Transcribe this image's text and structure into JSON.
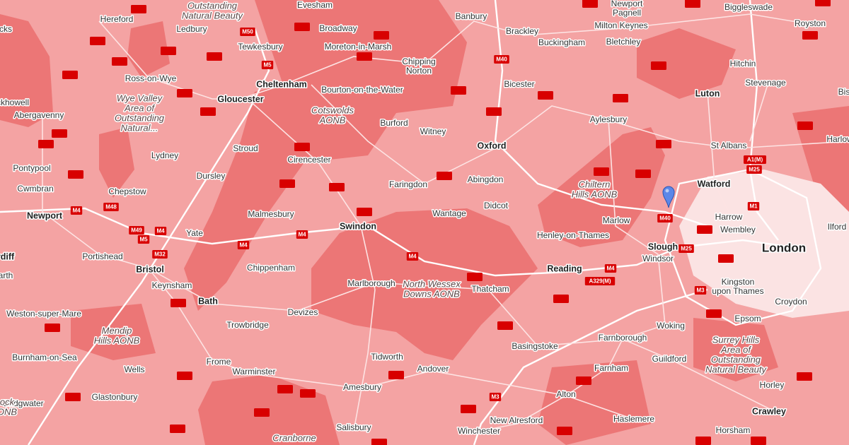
{
  "places": [
    {
      "lines": [
        "Evesham"
      ],
      "kind": "town"
    },
    {
      "lines": [
        "Outstanding",
        "Natural Beauty"
      ],
      "kind": "aonb"
    },
    {
      "lines": [
        "cks"
      ],
      "kind": "town"
    },
    {
      "lines": [
        "Hereford"
      ],
      "kind": "town"
    },
    {
      "lines": [
        "Ledbury"
      ],
      "kind": "town"
    },
    {
      "lines": [
        "Tewkesbury"
      ],
      "kind": "town"
    },
    {
      "lines": [
        "Broadway"
      ],
      "kind": "town"
    },
    {
      "lines": [
        "Moreton-in-Marsh"
      ],
      "kind": "town"
    },
    {
      "lines": [
        "Chipping",
        "Norton"
      ],
      "kind": "town"
    },
    {
      "lines": [
        "Banbury"
      ],
      "kind": "town"
    },
    {
      "lines": [
        "Brackley"
      ],
      "kind": "town"
    },
    {
      "lines": [
        "Buckingham"
      ],
      "kind": "town"
    },
    {
      "lines": [
        "Newport",
        "Pagnell"
      ],
      "kind": "town"
    },
    {
      "lines": [
        "Milton Keynes"
      ],
      "kind": "town"
    },
    {
      "lines": [
        "Bletchley"
      ],
      "kind": "town"
    },
    {
      "lines": [
        "Biggleswade"
      ],
      "kind": "town"
    },
    {
      "lines": [
        "Royston"
      ],
      "kind": "town"
    },
    {
      "lines": [
        "Ross-on-Wye"
      ],
      "kind": "town"
    },
    {
      "lines": [
        "Cheltenham"
      ],
      "kind": "city"
    },
    {
      "lines": [
        "Gloucester"
      ],
      "kind": "city"
    },
    {
      "lines": [
        "Bourton-on-the-Water"
      ],
      "kind": "town"
    },
    {
      "lines": [
        "Bicester"
      ],
      "kind": "town"
    },
    {
      "lines": [
        "Luton"
      ],
      "kind": "city"
    },
    {
      "lines": [
        "Hitchin"
      ],
      "kind": "town"
    },
    {
      "lines": [
        "Stevenage"
      ],
      "kind": "town"
    },
    {
      "lines": [
        "Bis"
      ],
      "kind": "town"
    },
    {
      "lines": [
        "ckhowell"
      ],
      "kind": "town"
    },
    {
      "lines": [
        "Abergavenny"
      ],
      "kind": "town"
    },
    {
      "lines": [
        "Wye Valley",
        "Area of",
        "Outstanding",
        "Natural..."
      ],
      "kind": "aonb"
    },
    {
      "lines": [
        "Cotswolds",
        "AONB"
      ],
      "kind": "aonb"
    },
    {
      "lines": [
        "Burford"
      ],
      "kind": "town"
    },
    {
      "lines": [
        "Witney"
      ],
      "kind": "town"
    },
    {
      "lines": [
        "Oxford"
      ],
      "kind": "city"
    },
    {
      "lines": [
        "Aylesbury"
      ],
      "kind": "town"
    },
    {
      "lines": [
        "St Albans"
      ],
      "kind": "town"
    },
    {
      "lines": [
        "Harlow"
      ],
      "kind": "town"
    },
    {
      "lines": [
        "Lydney"
      ],
      "kind": "town"
    },
    {
      "lines": [
        "Stroud"
      ],
      "kind": "town"
    },
    {
      "lines": [
        "Cirencester"
      ],
      "kind": "town"
    },
    {
      "lines": [
        "Pontypool"
      ],
      "kind": "town"
    },
    {
      "lines": [
        "Cwmbran"
      ],
      "kind": "town"
    },
    {
      "lines": [
        "Dursley"
      ],
      "kind": "town"
    },
    {
      "lines": [
        "Chepstow"
      ],
      "kind": "town"
    },
    {
      "lines": [
        "Faringdon"
      ],
      "kind": "town"
    },
    {
      "lines": [
        "Abingdon"
      ],
      "kind": "town"
    },
    {
      "lines": [
        "Chiltern",
        "Hills AONB"
      ],
      "kind": "aonb"
    },
    {
      "lines": [
        "Watford"
      ],
      "kind": "city"
    },
    {
      "lines": [
        "Newport"
      ],
      "kind": "city"
    },
    {
      "lines": [
        "Yate"
      ],
      "kind": "town"
    },
    {
      "lines": [
        "Malmesbury"
      ],
      "kind": "town"
    },
    {
      "lines": [
        "Swindon"
      ],
      "kind": "city"
    },
    {
      "lines": [
        "Wantage"
      ],
      "kind": "town"
    },
    {
      "lines": [
        "Didcot"
      ],
      "kind": "town"
    },
    {
      "lines": [
        "Marlow"
      ],
      "kind": "town"
    },
    {
      "lines": [
        "Henley-on-Thames"
      ],
      "kind": "town"
    },
    {
      "lines": [
        "Harrow"
      ],
      "kind": "town"
    },
    {
      "lines": [
        "Wembley"
      ],
      "kind": "town"
    },
    {
      "lines": [
        "Ilford"
      ],
      "kind": "town"
    },
    {
      "lines": [
        "Slough"
      ],
      "kind": "city"
    },
    {
      "lines": [
        "London"
      ],
      "kind": "capital"
    },
    {
      "lines": [
        "rdiff"
      ],
      "kind": "city"
    },
    {
      "lines": [
        "Portishead"
      ],
      "kind": "town"
    },
    {
      "lines": [
        "Bristol"
      ],
      "kind": "city"
    },
    {
      "lines": [
        "Chippenham"
      ],
      "kind": "town"
    },
    {
      "lines": [
        "Windsor"
      ],
      "kind": "town"
    },
    {
      "lines": [
        "Reading"
      ],
      "kind": "city"
    },
    {
      "lines": [
        "arth"
      ],
      "kind": "town"
    },
    {
      "lines": [
        "Keynsham"
      ],
      "kind": "town"
    },
    {
      "lines": [
        "Marlborough"
      ],
      "kind": "town"
    },
    {
      "lines": [
        "North Wessex",
        "Downs AONB"
      ],
      "kind": "aonb"
    },
    {
      "lines": [
        "Thatcham"
      ],
      "kind": "town"
    },
    {
      "lines": [
        "Kingston",
        "upon Thames"
      ],
      "kind": "town"
    },
    {
      "lines": [
        "Bath"
      ],
      "kind": "city"
    },
    {
      "lines": [
        "Devizes"
      ],
      "kind": "town"
    },
    {
      "lines": [
        "Weston-super-Mare"
      ],
      "kind": "town"
    },
    {
      "lines": [
        "Croydon"
      ],
      "kind": "town"
    },
    {
      "lines": [
        "Trowbridge"
      ],
      "kind": "town"
    },
    {
      "lines": [
        "Woking"
      ],
      "kind": "town"
    },
    {
      "lines": [
        "Epsom"
      ],
      "kind": "town"
    },
    {
      "lines": [
        "Mendip",
        "Hills AONB"
      ],
      "kind": "aonb"
    },
    {
      "lines": [
        "Farnborough"
      ],
      "kind": "town"
    },
    {
      "lines": [
        "Surrey Hills",
        "Area of",
        "Outstanding",
        "Natural Beauty"
      ],
      "kind": "aonb"
    },
    {
      "lines": [
        "Basingstoke"
      ],
      "kind": "town"
    },
    {
      "lines": [
        "Burnham-on-Sea"
      ],
      "kind": "town"
    },
    {
      "lines": [
        "Tidworth"
      ],
      "kind": "town"
    },
    {
      "lines": [
        "Guildford"
      ],
      "kind": "town"
    },
    {
      "lines": [
        "Frome"
      ],
      "kind": "town"
    },
    {
      "lines": [
        "Wells"
      ],
      "kind": "town"
    },
    {
      "lines": [
        "Warminster"
      ],
      "kind": "town"
    },
    {
      "lines": [
        "Andover"
      ],
      "kind": "town"
    },
    {
      "lines": [
        "Farnham"
      ],
      "kind": "town"
    },
    {
      "lines": [
        "Horley"
      ],
      "kind": "town"
    },
    {
      "lines": [
        "Amesbury"
      ],
      "kind": "town"
    },
    {
      "lines": [
        "Alton"
      ],
      "kind": "town"
    },
    {
      "lines": [
        "Glastonbury"
      ],
      "kind": "town"
    },
    {
      "lines": [
        "Bridgwater"
      ],
      "kind": "town"
    },
    {
      "lines": [
        "ock",
        "ONB"
      ],
      "kind": "aonb"
    },
    {
      "lines": [
        "Crawley"
      ],
      "kind": "city"
    },
    {
      "lines": [
        "Haslemere"
      ],
      "kind": "town"
    },
    {
      "lines": [
        "New Alresford"
      ],
      "kind": "town"
    },
    {
      "lines": [
        "Salisbury"
      ],
      "kind": "town"
    },
    {
      "lines": [
        "Winchester"
      ],
      "kind": "town"
    },
    {
      "lines": [
        "Horsham"
      ],
      "kind": "town"
    },
    {
      "lines": [
        "Cranborne"
      ],
      "kind": "aonb"
    }
  ],
  "roads": [
    "M50",
    "M5",
    "M40",
    "M48",
    "M4",
    "M49",
    "M4",
    "M5",
    "M32",
    "M4",
    "M4",
    "M4",
    "M40",
    "M25",
    "M4",
    "A329(M)",
    "M3",
    "M1",
    "A1(M)",
    "M25",
    "M3"
  ]
}
